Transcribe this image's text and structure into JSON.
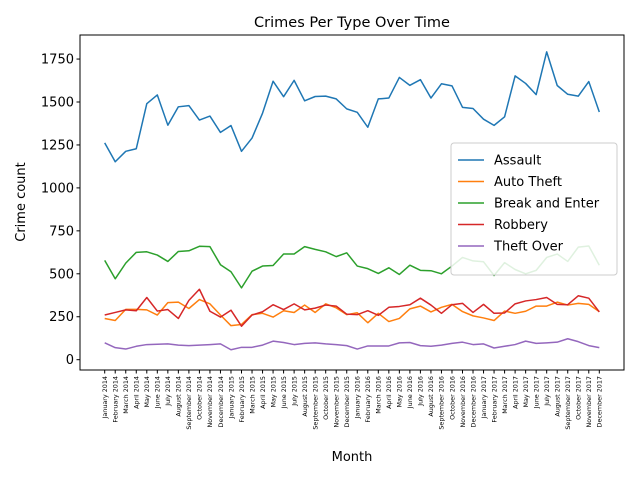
{
  "chart_data": {
    "type": "line",
    "title": "Crimes Per Type Over Time",
    "xlabel": "Month",
    "ylabel": "Crime count",
    "ylim": [
      -60,
      1890
    ],
    "yticks": [
      0,
      250,
      500,
      750,
      1000,
      1250,
      1500,
      1750
    ],
    "grid": false,
    "legend_position": "center-right",
    "categories": [
      "January 2014",
      "February 2014",
      "March 2014",
      "April 2014",
      "May 2014",
      "June 2014",
      "July 2014",
      "August 2014",
      "September 2014",
      "October 2014",
      "November 2014",
      "December 2014",
      "January 2015",
      "February 2015",
      "March 2015",
      "April 2015",
      "May 2015",
      "June 2015",
      "July 2015",
      "August 2015",
      "September 2015",
      "October 2015",
      "November 2015",
      "December 2015",
      "January 2016",
      "February 2016",
      "March 2016",
      "April 2016",
      "May 2016",
      "June 2016",
      "July 2016",
      "August 2016",
      "September 2016",
      "October 2016",
      "November 2016",
      "December 2016",
      "January 2017",
      "February 2017",
      "March 2017",
      "April 2017",
      "May 2017",
      "June 2017",
      "July 2017",
      "August 2017",
      "September 2017",
      "October 2017",
      "November 2017",
      "December 2017"
    ],
    "series": [
      {
        "name": "Assault",
        "color": "#1f77b4",
        "values": [
          1262,
          1152,
          1213,
          1228,
          1490,
          1541,
          1365,
          1472,
          1479,
          1395,
          1418,
          1323,
          1363,
          1213,
          1290,
          1435,
          1621,
          1531,
          1626,
          1507,
          1532,
          1534,
          1518,
          1460,
          1440,
          1353,
          1518,
          1523,
          1643,
          1597,
          1630,
          1523,
          1606,
          1594,
          1469,
          1462,
          1400,
          1364,
          1414,
          1652,
          1608,
          1543,
          1792,
          1596,
          1545,
          1534,
          1619,
          1442
        ]
      },
      {
        "name": "Auto Theft",
        "color": "#ff7f0e",
        "values": [
          240,
          228,
          293,
          293,
          290,
          260,
          332,
          335,
          298,
          350,
          325,
          260,
          198,
          205,
          262,
          270,
          248,
          285,
          275,
          318,
          275,
          325,
          302,
          262,
          273,
          215,
          270,
          222,
          240,
          296,
          312,
          278,
          305,
          322,
          280,
          255,
          243,
          228,
          283,
          270,
          282,
          312,
          312,
          335,
          318,
          328,
          322,
          280
        ]
      },
      {
        "name": "Break and Enter",
        "color": "#2ca02c",
        "values": [
          578,
          471,
          562,
          625,
          628,
          609,
          572,
          630,
          634,
          660,
          658,
          553,
          512,
          418,
          515,
          545,
          548,
          615,
          615,
          658,
          642,
          628,
          600,
          622,
          545,
          530,
          502,
          535,
          496,
          550,
          520,
          518,
          500,
          545,
          595,
          575,
          570,
          490,
          565,
          525,
          500,
          520,
          595,
          615,
          572,
          655,
          662,
          550
        ]
      },
      {
        "name": "Robbery",
        "color": "#d62728",
        "values": [
          260,
          275,
          290,
          285,
          362,
          283,
          292,
          240,
          345,
          410,
          282,
          248,
          288,
          195,
          260,
          279,
          320,
          292,
          325,
          290,
          300,
          318,
          312,
          265,
          262,
          285,
          258,
          305,
          310,
          320,
          358,
          318,
          270,
          320,
          328,
          275,
          322,
          270,
          272,
          325,
          342,
          350,
          362,
          322,
          320,
          372,
          358,
          278
        ]
      },
      {
        "name": "Theft Over",
        "color": "#9467bd",
        "values": [
          98,
          70,
          62,
          78,
          88,
          90,
          92,
          85,
          82,
          85,
          88,
          92,
          58,
          72,
          72,
          85,
          108,
          100,
          88,
          95,
          98,
          92,
          88,
          82,
          62,
          80,
          80,
          80,
          98,
          100,
          82,
          78,
          85,
          95,
          102,
          88,
          92,
          68,
          78,
          88,
          108,
          95,
          98,
          102,
          122,
          105,
          82,
          70
        ]
      }
    ]
  }
}
